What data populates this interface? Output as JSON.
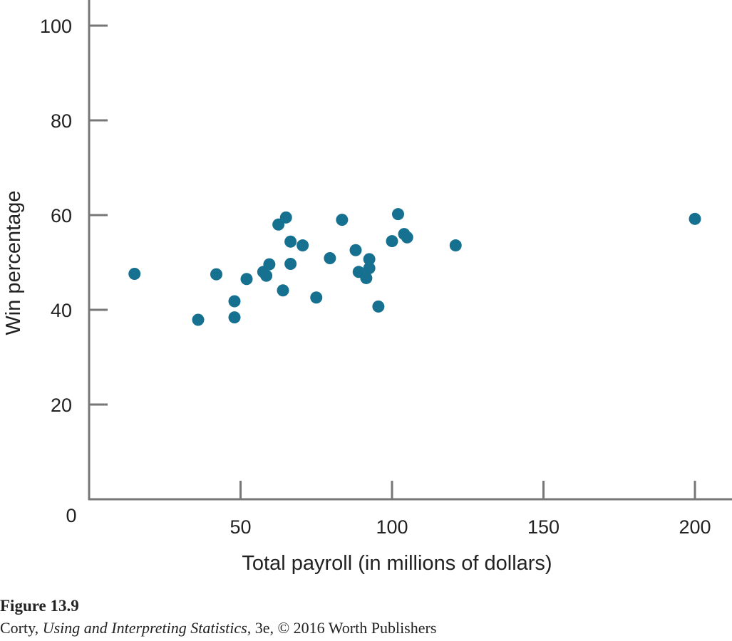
{
  "chart_data": {
    "type": "scatter",
    "xlabel": "Total payroll (in millions of dollars)",
    "ylabel": "Win percentage",
    "xlim": [
      0,
      200
    ],
    "ylim": [
      0,
      100
    ],
    "x_ticks": [
      50,
      100,
      150,
      200
    ],
    "y_ticks": [
      20,
      40,
      60,
      80,
      100
    ],
    "origin_label": "0",
    "grid": false,
    "legend": "none",
    "point_color": "#16708f",
    "points": [
      {
        "x": 15,
        "y": 47.6
      },
      {
        "x": 36,
        "y": 37.9
      },
      {
        "x": 42,
        "y": 47.5
      },
      {
        "x": 48,
        "y": 41.8
      },
      {
        "x": 48,
        "y": 38.4
      },
      {
        "x": 52,
        "y": 46.5
      },
      {
        "x": 57.5,
        "y": 48.0
      },
      {
        "x": 58.5,
        "y": 47.2
      },
      {
        "x": 59.5,
        "y": 49.6
      },
      {
        "x": 62.5,
        "y": 58.0
      },
      {
        "x": 64,
        "y": 44.1
      },
      {
        "x": 65,
        "y": 59.5
      },
      {
        "x": 66.5,
        "y": 54.4
      },
      {
        "x": 66.5,
        "y": 49.7
      },
      {
        "x": 70.5,
        "y": 53.6
      },
      {
        "x": 75,
        "y": 42.6
      },
      {
        "x": 79.5,
        "y": 50.9
      },
      {
        "x": 83.5,
        "y": 59.0
      },
      {
        "x": 88,
        "y": 52.6
      },
      {
        "x": 89,
        "y": 48.0
      },
      {
        "x": 91.5,
        "y": 46.7
      },
      {
        "x": 92.5,
        "y": 48.8
      },
      {
        "x": 92.5,
        "y": 50.7
      },
      {
        "x": 95.5,
        "y": 40.7
      },
      {
        "x": 100,
        "y": 54.5
      },
      {
        "x": 102,
        "y": 60.2
      },
      {
        "x": 104,
        "y": 56.0
      },
      {
        "x": 105,
        "y": 55.3
      },
      {
        "x": 121,
        "y": 53.6
      },
      {
        "x": 200,
        "y": 59.2
      }
    ]
  },
  "caption": {
    "figure_label": "Figure 13.9",
    "credit_author": "Corty, ",
    "credit_title": "Using and Interpreting Statistics",
    "credit_rest": ", 3e, © 2016 Worth Publishers"
  }
}
